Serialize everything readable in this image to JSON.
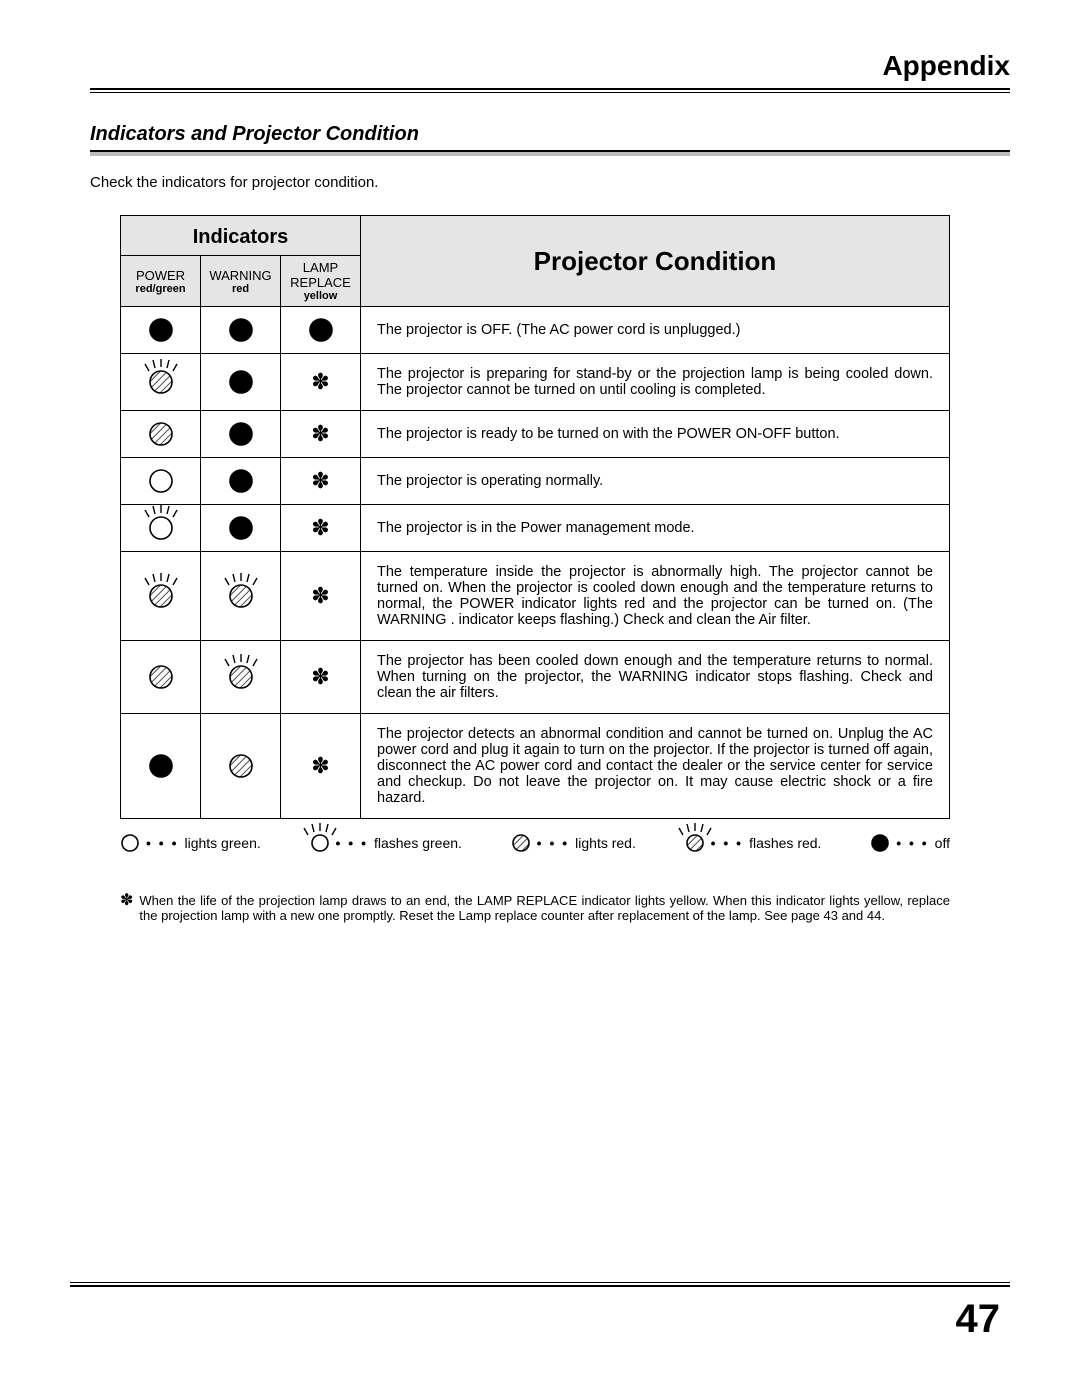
{
  "chapter": "Appendix",
  "section_title": "Indicators and Projector Condition",
  "intro": "Check the indicators for projector condition.",
  "page_number": "47",
  "headers": {
    "indicators": "Indicators",
    "projector_condition": "Projector Condition",
    "power": "POWER",
    "power_sub": "red/green",
    "warning": "WARNING",
    "warning_sub": "red",
    "lamp": "LAMP REPLACE",
    "lamp_sub": "yellow"
  },
  "symbol_style": {
    "circle_radius": 11,
    "stroke_width": 1.6,
    "off_fill": "#000000",
    "on_fill": "#ffffff",
    "hatched_fill": "hatch",
    "asterisk": "✽",
    "asterisk_fontsize": 22
  },
  "rows": [
    {
      "power": {
        "type": "off",
        "rays": false
      },
      "warning": {
        "type": "off",
        "rays": false
      },
      "lamp": {
        "type": "off",
        "rays": false
      },
      "desc": "The projector is OFF.  (The AC power cord is unplugged.)"
    },
    {
      "power": {
        "type": "hatched",
        "rays": true
      },
      "warning": {
        "type": "off",
        "rays": false
      },
      "lamp": {
        "type": "asterisk",
        "rays": false
      },
      "desc": "The projector is preparing for stand-by or the projection lamp is being cooled down.  The projector cannot be turned on until cooling is completed."
    },
    {
      "power": {
        "type": "hatched",
        "rays": false
      },
      "warning": {
        "type": "off",
        "rays": false
      },
      "lamp": {
        "type": "asterisk",
        "rays": false
      },
      "desc": "The projector is ready to be turned on with the POWER ON-OFF button."
    },
    {
      "power": {
        "type": "open",
        "rays": false
      },
      "warning": {
        "type": "off",
        "rays": false
      },
      "lamp": {
        "type": "asterisk",
        "rays": false
      },
      "desc": "The projector is operating normally."
    },
    {
      "power": {
        "type": "open",
        "rays": true
      },
      "warning": {
        "type": "off",
        "rays": false
      },
      "lamp": {
        "type": "asterisk",
        "rays": false
      },
      "desc": "The projector is in the Power management mode."
    },
    {
      "power": {
        "type": "hatched",
        "rays": true
      },
      "warning": {
        "type": "hatched",
        "rays": true
      },
      "lamp": {
        "type": "asterisk",
        "rays": false
      },
      "desc": "The temperature inside the projector is abnormally high.  The projector cannot be turned on.  When  the projector is cooled down enough and the temperature returns to normal, the POWER indicator lights red and the projector can be turned on.  (The WARNING . indicator keeps flashing.)  Check and clean the Air filter."
    },
    {
      "power": {
        "type": "hatched",
        "rays": false
      },
      "warning": {
        "type": "hatched",
        "rays": true
      },
      "lamp": {
        "type": "asterisk",
        "rays": false
      },
      "desc": "The projector has been cooled down enough and the temperature returns to normal.  When turning on the projector, the WARNING  indicator stops flashing.  Check and clean the air filters."
    },
    {
      "power": {
        "type": "off",
        "rays": false
      },
      "warning": {
        "type": "hatched",
        "rays": false
      },
      "lamp": {
        "type": "asterisk",
        "rays": false
      },
      "desc": "The projector detects an abnormal condition and cannot be turned on.  Unplug the AC power cord and plug it again to turn on the projector.  If the projector is turned off again, disconnect the AC power cord and contact the dealer or the service center for service and checkup.  Do not leave the projector on.  It may cause electric shock or a fire hazard."
    }
  ],
  "legend": {
    "dots": "• • •",
    "items": [
      {
        "sym": {
          "type": "open",
          "rays": false
        },
        "label": "lights green."
      },
      {
        "sym": {
          "type": "open",
          "rays": true
        },
        "label": "flashes green."
      },
      {
        "sym": {
          "type": "hatched",
          "rays": false
        },
        "label": "lights red."
      },
      {
        "sym": {
          "type": "hatched",
          "rays": true
        },
        "label": "flashes red."
      },
      {
        "sym": {
          "type": "off",
          "rays": false
        },
        "label": "off"
      }
    ]
  },
  "note": {
    "marker": "✽",
    "text": "When the life of the projection lamp draws to an end, the LAMP REPLACE indicator lights yellow.  When this indicator lights yellow, replace the projection lamp with a new one promptly.  Reset the Lamp replace counter after replacement of the lamp.  See page 43 and 44."
  }
}
